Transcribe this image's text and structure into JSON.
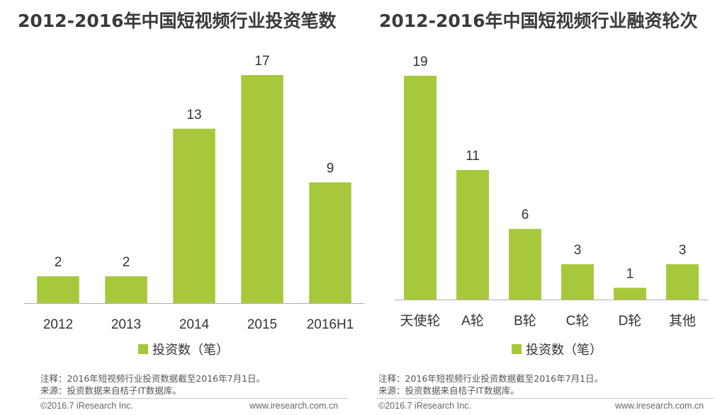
{
  "accent_color": "#a6c83a",
  "chart_data": [
    {
      "type": "bar",
      "title": "2012-2016年中国短视频行业投资笔数",
      "categories": [
        "2012",
        "2013",
        "2014",
        "2015",
        "2016H1"
      ],
      "series": [
        {
          "name": "投资数（笔）",
          "values": [
            2,
            2,
            13,
            17,
            9
          ]
        }
      ],
      "ylim": [
        0,
        17
      ],
      "grid": false,
      "legend": "bottom",
      "note_lines": [
        "注释：2016年短视频行业投资数据截至2016年7月1日。",
        "来源：投资数据来自桔子IT数据库。"
      ],
      "footer_left": "©2016.7 iResearch Inc.",
      "footer_right": "www.iresearch.com.cn"
    },
    {
      "type": "bar",
      "title": "2012-2016年中国短视频行业融资轮次",
      "categories": [
        "天使轮",
        "A轮",
        "B轮",
        "C轮",
        "D轮",
        "其他"
      ],
      "series": [
        {
          "name": "投资数（笔）",
          "values": [
            19,
            11,
            6,
            3,
            1,
            3
          ]
        }
      ],
      "ylim": [
        0,
        19
      ],
      "grid": false,
      "legend": "bottom",
      "note_lines": [
        "注释：2016年短视频行业投资数据截至2016年7月1日。",
        "来源：投资数据来自桔子IT数据库。"
      ],
      "footer_left": "©2016.7 iResearch Inc.",
      "footer_right": "www.iresearch.com.cn"
    }
  ]
}
